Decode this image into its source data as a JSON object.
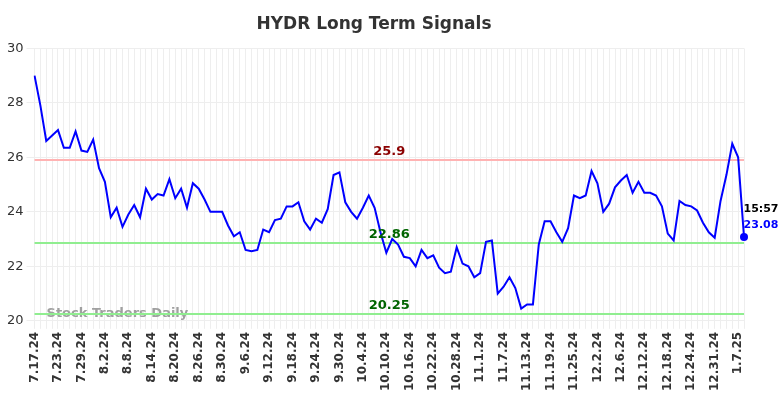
{
  "chart_data": {
    "type": "line",
    "title": "HYDR Long Term Signals",
    "watermark": "Stock Traders Daily",
    "categories": [
      "7.17.24",
      null,
      null,
      null,
      "7.23.24",
      null,
      null,
      null,
      "7.29.24",
      null,
      null,
      null,
      "8.2.24",
      null,
      null,
      null,
      "8.8.24",
      null,
      null,
      null,
      "8.14.24",
      null,
      null,
      null,
      "8.20.24",
      null,
      null,
      null,
      "8.26.24",
      null,
      null,
      null,
      "8.30.24",
      null,
      null,
      null,
      "9.6.24",
      null,
      null,
      null,
      "9.12.24",
      null,
      null,
      null,
      "9.18.24",
      null,
      null,
      null,
      "9.24.24",
      null,
      null,
      null,
      "9.30.24",
      null,
      null,
      null,
      "10.4.24",
      null,
      null,
      null,
      "10.10.24",
      null,
      null,
      null,
      "10.16.24",
      null,
      null,
      null,
      "10.22.24",
      null,
      null,
      null,
      "10.28.24",
      null,
      null,
      null,
      "11.1.24",
      null,
      null,
      null,
      "11.7.24",
      null,
      null,
      null,
      "11.13.24",
      null,
      null,
      null,
      "11.19.24",
      null,
      null,
      null,
      "11.25.24",
      null,
      null,
      null,
      "12.2.24",
      null,
      null,
      null,
      "12.6.24",
      null,
      null,
      null,
      "12.12.24",
      null,
      null,
      null,
      "12.18.24",
      null,
      null,
      null,
      "12.24.24",
      null,
      null,
      null,
      "12.31.24",
      null,
      null,
      null,
      "1.7.25",
      null
    ],
    "series": [
      {
        "name": "HYDR",
        "color": "#0000ff",
        "values": [
          29.0,
          27.9,
          26.6,
          26.8,
          27.0,
          26.35,
          26.35,
          26.95,
          26.25,
          26.2,
          26.65,
          25.6,
          25.1,
          23.8,
          24.15,
          23.45,
          23.9,
          24.25,
          23.8,
          24.85,
          24.45,
          24.65,
          24.6,
          25.2,
          24.5,
          24.85,
          24.15,
          25.05,
          24.85,
          24.45,
          24.0,
          24.0,
          24.0,
          23.5,
          23.1,
          23.25,
          22.6,
          22.55,
          22.6,
          23.35,
          23.25,
          23.7,
          23.75,
          24.2,
          24.2,
          24.35,
          23.65,
          23.35,
          23.75,
          23.6,
          24.1,
          25.35,
          25.45,
          24.35,
          24.0,
          23.75,
          24.15,
          24.6,
          24.15,
          23.25,
          22.5,
          23.0,
          22.8,
          22.35,
          22.3,
          22.0,
          22.6,
          22.3,
          22.4,
          21.95,
          21.75,
          21.8,
          22.7,
          22.1,
          22.0,
          21.6,
          21.75,
          22.9,
          22.95,
          21.0,
          21.25,
          21.6,
          21.2,
          20.45,
          20.6,
          20.6,
          22.8,
          23.65,
          23.65,
          23.25,
          22.9,
          23.4,
          24.6,
          24.5,
          24.6,
          25.5,
          25.05,
          24.0,
          24.3,
          24.9,
          25.15,
          25.35,
          24.7,
          25.1,
          24.7,
          24.7,
          24.6,
          24.2,
          23.2,
          22.95,
          24.4,
          24.25,
          24.2,
          24.05,
          23.6,
          23.25,
          23.05,
          24.4,
          25.35,
          26.5,
          26.0,
          23.08
        ]
      }
    ],
    "reference_lines": [
      {
        "value": 25.9,
        "color": "#ffb3b3",
        "label_color": "#8b0000"
      },
      {
        "value": 22.86,
        "color": "#90ee90",
        "label_color": "#006400"
      },
      {
        "value": 20.25,
        "color": "#90ee90",
        "label_color": "#006400"
      }
    ],
    "last_point": {
      "time": "15:57",
      "value": 23.08
    },
    "ylim": [
      20,
      30
    ],
    "yticks": [
      20,
      22,
      24,
      26,
      28,
      30
    ],
    "grid": true
  }
}
